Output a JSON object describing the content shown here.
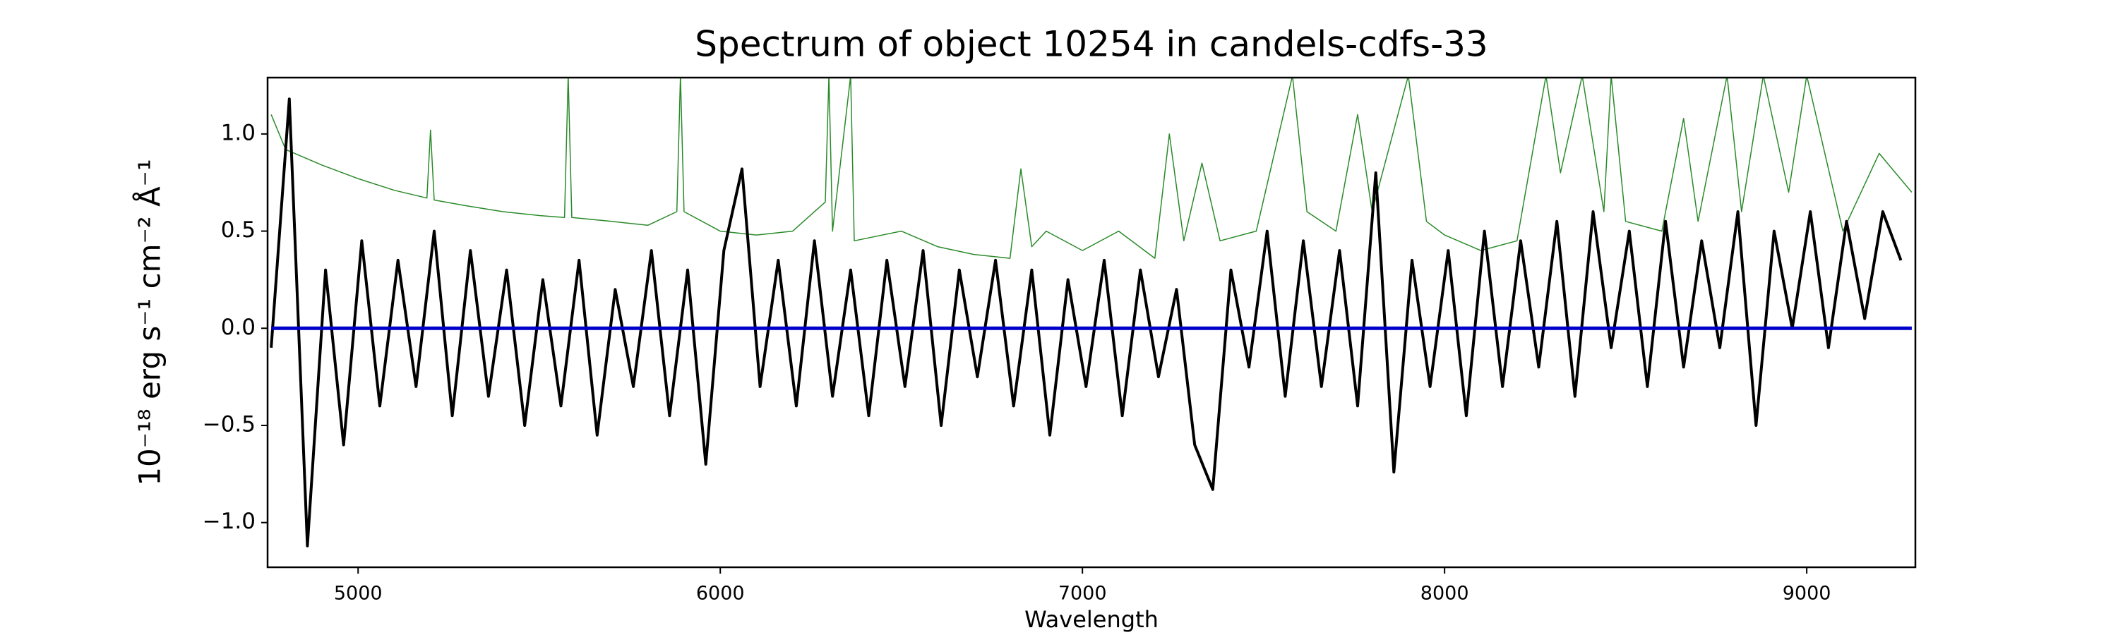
{
  "chart_data": {
    "type": "line",
    "title": "Spectrum of object 10254 in candels-cdfs-33",
    "xlabel": "Wavelength",
    "ylabel": "10⁻¹⁸ erg s⁻¹ cm⁻² Å⁻¹",
    "xlim": [
      4750,
      9300
    ],
    "ylim": [
      -1.23,
      1.29
    ],
    "xticks": [
      5000,
      6000,
      7000,
      8000,
      9000
    ],
    "yticks": [
      {
        "value": -1.0,
        "label": "−1.0"
      },
      {
        "value": -0.5,
        "label": "−0.5"
      },
      {
        "value": 0.0,
        "label": "0.0"
      },
      0.5,
      {
        "value": 1.0,
        "label": "1.0"
      }
    ],
    "series": [
      {
        "color": "#2a8a2a",
        "width": 1.5,
        "x": [
          4760,
          4800,
          4900,
          5000,
          5100,
          5190,
          5200,
          5210,
          5300,
          5400,
          5500,
          5570,
          5580,
          5590,
          5700,
          5800,
          5880,
          5890,
          5900,
          6000,
          6100,
          6200,
          6290,
          6300,
          6310,
          6360,
          6370,
          6500,
          6600,
          6700,
          6800,
          6830,
          6860,
          6900,
          7000,
          7100,
          7200,
          7240,
          7280,
          7330,
          7380,
          7480,
          7580,
          7620,
          7700,
          7760,
          7800,
          7900,
          7950,
          8000,
          8100,
          8200,
          8280,
          8320,
          8380,
          8440,
          8460,
          8500,
          8600,
          8660,
          8700,
          8780,
          8820,
          8880,
          8950,
          9000,
          9100,
          9200,
          9290
        ],
        "values": [
          1.1,
          0.92,
          0.84,
          0.77,
          0.71,
          0.67,
          1.02,
          0.66,
          0.63,
          0.6,
          0.58,
          0.57,
          1.3,
          0.57,
          0.55,
          0.53,
          0.6,
          1.3,
          0.6,
          0.5,
          0.48,
          0.5,
          0.65,
          1.3,
          0.5,
          1.3,
          0.45,
          0.5,
          0.42,
          0.38,
          0.36,
          0.82,
          0.42,
          0.5,
          0.4,
          0.5,
          0.36,
          1.0,
          0.45,
          0.85,
          0.45,
          0.5,
          1.3,
          0.6,
          0.5,
          1.1,
          0.6,
          1.3,
          0.55,
          0.48,
          0.4,
          0.45,
          1.3,
          0.8,
          1.3,
          0.6,
          1.3,
          0.55,
          0.5,
          1.08,
          0.55,
          1.3,
          0.6,
          1.3,
          0.7,
          1.3,
          0.5,
          0.9,
          0.7
        ]
      },
      {
        "color": "#000000",
        "width": 4,
        "x": [
          4760,
          4810,
          4860,
          4910,
          4960,
          5010,
          5060,
          5110,
          5160,
          5210,
          5260,
          5310,
          5360,
          5410,
          5460,
          5510,
          5560,
          5610,
          5660,
          5710,
          5760,
          5810,
          5860,
          5910,
          5960,
          6010,
          6060,
          6110,
          6160,
          6210,
          6260,
          6310,
          6360,
          6410,
          6460,
          6510,
          6560,
          6610,
          6660,
          6710,
          6760,
          6810,
          6860,
          6910,
          6960,
          7010,
          7060,
          7110,
          7160,
          7210,
          7260,
          7310,
          7360,
          7410,
          7460,
          7510,
          7560,
          7610,
          7660,
          7710,
          7760,
          7810,
          7860,
          7910,
          7960,
          8010,
          8060,
          8110,
          8160,
          8210,
          8260,
          8310,
          8360,
          8410,
          8460,
          8510,
          8560,
          8610,
          8660,
          8710,
          8760,
          8810,
          8860,
          8910,
          8960,
          9010,
          9060,
          9110,
          9160,
          9210,
          9260
        ],
        "values": [
          -0.1,
          1.18,
          -1.12,
          0.3,
          -0.6,
          0.45,
          -0.4,
          0.35,
          -0.3,
          0.5,
          -0.45,
          0.4,
          -0.35,
          0.3,
          -0.5,
          0.25,
          -0.4,
          0.35,
          -0.55,
          0.2,
          -0.3,
          0.4,
          -0.45,
          0.3,
          -0.7,
          0.4,
          0.82,
          -0.3,
          0.35,
          -0.4,
          0.45,
          -0.35,
          0.3,
          -0.45,
          0.35,
          -0.3,
          0.4,
          -0.5,
          0.3,
          -0.25,
          0.35,
          -0.4,
          0.3,
          -0.55,
          0.25,
          -0.3,
          0.35,
          -0.45,
          0.3,
          -0.25,
          0.2,
          -0.6,
          -0.83,
          0.3,
          -0.2,
          0.5,
          -0.35,
          0.45,
          -0.3,
          0.4,
          -0.4,
          0.8,
          -0.74,
          0.35,
          -0.3,
          0.4,
          -0.45,
          0.5,
          -0.3,
          0.45,
          -0.2,
          0.55,
          -0.35,
          0.6,
          -0.1,
          0.5,
          -0.3,
          0.55,
          -0.2,
          0.45,
          -0.1,
          0.6,
          -0.5,
          0.5,
          0.0,
          0.6,
          -0.1,
          0.55,
          0.05,
          0.6,
          0.35
        ]
      },
      {
        "color": "#0000cc",
        "width": 5,
        "x": [
          4760,
          9290
        ],
        "values": [
          0,
          0
        ]
      }
    ]
  }
}
